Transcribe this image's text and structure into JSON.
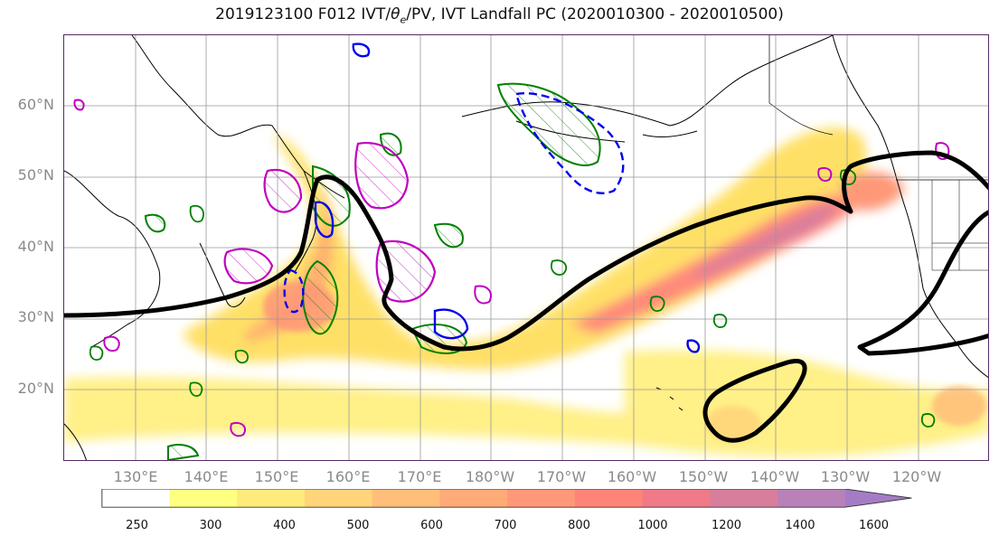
{
  "title": "2019123100 F012 IVT/θe/PV, IVT Landfall PC (2020010300 - 2020010500)",
  "title_parts": {
    "prefix": "2019123100 F012 IVT/",
    "theta": "θ",
    "sub": "e",
    "suffix": "/PV, IVT Landfall PC (2020010300 - 2020010500)"
  },
  "map": {
    "projection": "Plate Carree",
    "lat_labels": [
      "60°N",
      "50°N",
      "40°N",
      "30°N",
      "20°N"
    ],
    "lon_labels": [
      "130°E",
      "140°E",
      "150°E",
      "160°E",
      "170°E",
      "180°W",
      "170°W",
      "160°W",
      "150°W",
      "140°W",
      "130°W",
      "120°W"
    ],
    "colors": {
      "landfall_contour": "#000000",
      "pv_positive": "#c000c0",
      "theta_e": "#008000",
      "pv_negative": "#0000ee",
      "coastline": "#000000",
      "grid": "#999999",
      "frame": "#5a2a66"
    }
  },
  "colorbar": {
    "ticks": [
      "250",
      "300",
      "400",
      "500",
      "600",
      "700",
      "800",
      "1000",
      "1200",
      "1400",
      "1600"
    ],
    "colors": [
      "#ffffff",
      "#ffff80",
      "#ffeb7a",
      "#ffd47a",
      "#ffbe7a",
      "#ffab78",
      "#ff9878",
      "#ff8478",
      "#f07a88",
      "#d87e9c",
      "#b882b8",
      "#a47cc6"
    ],
    "extend": "max"
  }
}
